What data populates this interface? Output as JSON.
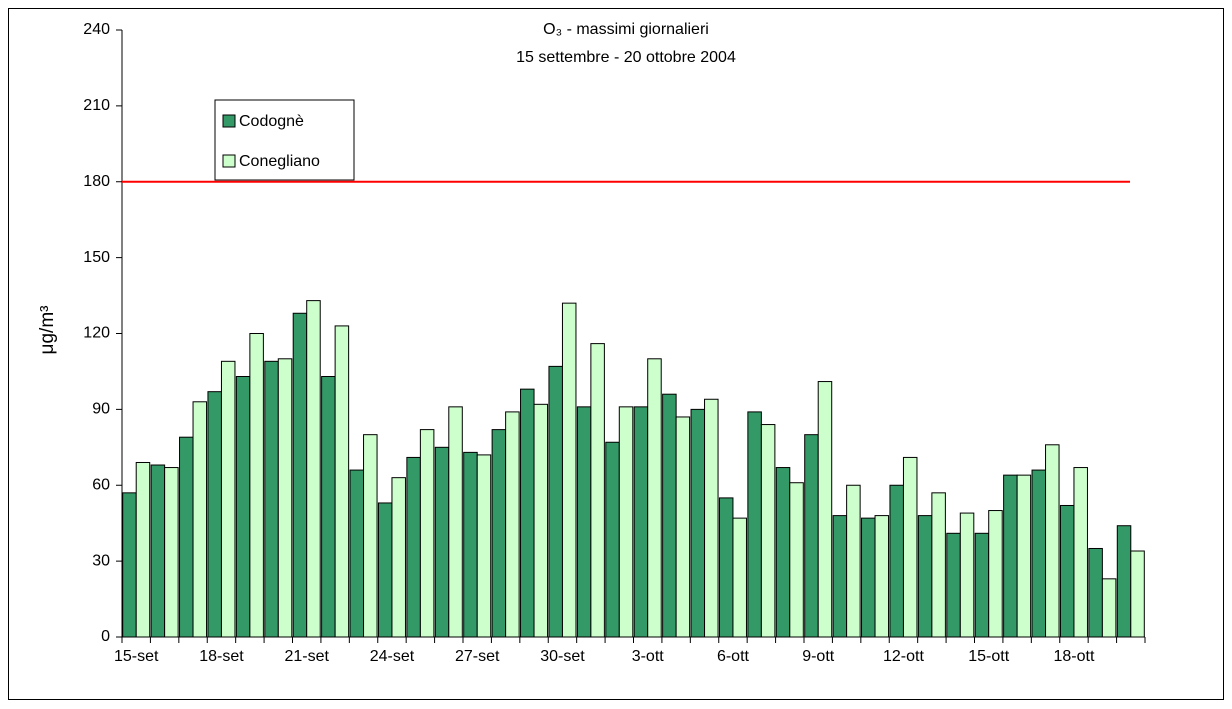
{
  "chart_data": {
    "type": "bar",
    "title": "O₃ - massimi giornalieri",
    "subtitle": "15 settembre - 20 ottobre 2004",
    "y_label": "μg/m³",
    "categories": [
      "15-set",
      null,
      null,
      "18-set",
      null,
      null,
      "21-set",
      null,
      null,
      "24-set",
      null,
      null,
      "27-set",
      null,
      null,
      "30-set",
      null,
      null,
      "3-ott",
      null,
      null,
      "6-ott",
      null,
      null,
      "9-ott",
      null,
      null,
      "12-ott",
      null,
      null,
      "15-ott",
      null,
      null,
      "18-ott",
      null,
      null
    ],
    "series": [
      {
        "name": "Codognè",
        "color": "#339966",
        "values": [
          57,
          68,
          79,
          97,
          103,
          109,
          128,
          103,
          66,
          53,
          71,
          75,
          73,
          82,
          98,
          107,
          91,
          77,
          91,
          96,
          90,
          55,
          89,
          67,
          80,
          48,
          47,
          60,
          48,
          41,
          41,
          64,
          66,
          52,
          35,
          44
        ]
      },
      {
        "name": "Conegliano",
        "color": "#ccffcc",
        "values": [
          69,
          67,
          93,
          109,
          120,
          110,
          133,
          123,
          80,
          63,
          82,
          91,
          72,
          89,
          92,
          132,
          116,
          91,
          110,
          87,
          94,
          47,
          84,
          61,
          101,
          60,
          48,
          71,
          57,
          49,
          50,
          64,
          76,
          67,
          23,
          34
        ]
      }
    ],
    "threshold": 180,
    "threshold_color": "#ff0000",
    "ylim": [
      0,
      240
    ],
    "yticks": [
      0,
      30,
      60,
      90,
      120,
      150,
      180,
      210,
      240
    ],
    "grid": false,
    "legend": "upper left"
  }
}
